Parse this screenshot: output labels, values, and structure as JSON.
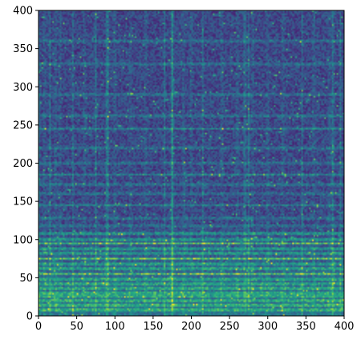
{
  "chart_data": {
    "type": "heatmap",
    "title": "",
    "xlabel": "",
    "ylabel": "",
    "xlim": [
      0,
      400
    ],
    "ylim": [
      0,
      400
    ],
    "xticks": [
      0,
      50,
      100,
      150,
      200,
      250,
      300,
      350,
      400
    ],
    "yticks": [
      0,
      50,
      100,
      150,
      200,
      250,
      300,
      350,
      400
    ],
    "xtick_labels": [
      "0",
      "50",
      "100",
      "150",
      "200",
      "250",
      "300",
      "350",
      "400"
    ],
    "ytick_labels": [
      "0",
      "50",
      "100",
      "150",
      "200",
      "250",
      "300",
      "350",
      "400"
    ],
    "colormap": "viridis",
    "grid": false,
    "description_free_note": "",
    "bright_horizontal_bands_y": [
      8,
      14,
      20,
      26,
      30,
      36,
      42,
      48,
      55,
      62,
      68,
      75,
      82,
      88,
      95,
      100,
      108,
      118,
      128,
      145,
      160,
      172,
      185,
      200,
      220,
      245,
      262,
      290,
      330,
      360
    ],
    "bright_vertical_columns_x": [
      8,
      15,
      22,
      28,
      45,
      60,
      75,
      90,
      100,
      120,
      140,
      165,
      175,
      190,
      200,
      215,
      240,
      260,
      275,
      280,
      300,
      320,
      345,
      360,
      380,
      395
    ],
    "onset_columns_x": [
      0,
      90,
      175,
      270,
      385
    ]
  },
  "colors": {
    "viridis_dark": "#440154",
    "viridis_mid": "#21918c",
    "viridis_bright": "#fde725"
  }
}
